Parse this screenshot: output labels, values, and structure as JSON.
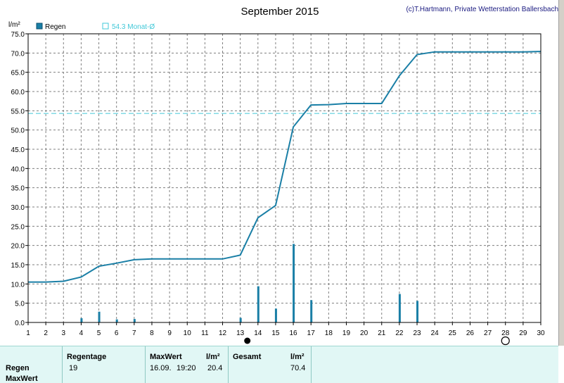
{
  "header": {
    "title": "September 2015",
    "copyright": "(c)T.Hartmann, Private Wetterstation Ballersbach"
  },
  "legend": {
    "rain_label": "Regen",
    "monthly_avg_label": "54.3 Monat-Ø"
  },
  "colors": {
    "line": "#1a7fa6",
    "bars": "#1a7fa6",
    "avg_line": "#40c8d8",
    "grid": "#7f7f7f",
    "panel_bg": "#e1f7f5"
  },
  "moon_phases": {
    "new_moon_day": 13.4,
    "full_moon_day": 28.0
  },
  "chart_data": {
    "type": "line",
    "title": "September 2015",
    "ylabel": "l/m²",
    "xlim": [
      1,
      30
    ],
    "ylim": [
      0,
      75
    ],
    "x_ticks": [
      "1",
      "2",
      "3",
      "4",
      "5",
      "6",
      "7",
      "8",
      "9",
      "10",
      "11",
      "12",
      "13",
      "14",
      "15",
      "16",
      "17",
      "18",
      "19",
      "20",
      "21",
      "22",
      "23",
      "24",
      "25",
      "26",
      "27",
      "28",
      "29",
      "30"
    ],
    "y_ticks": [
      "0.0",
      "5.0",
      "10.0",
      "15.0",
      "20.0",
      "25.0",
      "30.0",
      "35.0",
      "40.0",
      "45.0",
      "50.0",
      "55.0",
      "60.0",
      "65.0",
      "70.0",
      "75.0"
    ],
    "grid": true,
    "legend_position": "top-left",
    "series": [
      {
        "name": "Regen",
        "type": "bar",
        "points": [
          {
            "x": 4,
            "y": 1.1
          },
          {
            "x": 5,
            "y": 2.8
          },
          {
            "x": 6,
            "y": 0.8
          },
          {
            "x": 7,
            "y": 0.9
          },
          {
            "x": 13,
            "y": 1.2
          },
          {
            "x": 14,
            "y": 9.4
          },
          {
            "x": 15,
            "y": 3.6
          },
          {
            "x": 16,
            "y": 20.4
          },
          {
            "x": 17,
            "y": 5.8
          },
          {
            "x": 22,
            "y": 7.4
          },
          {
            "x": 23,
            "y": 5.6
          }
        ]
      },
      {
        "name": "Summe",
        "type": "line",
        "points": [
          {
            "x": 1,
            "y": 10.5
          },
          {
            "x": 2,
            "y": 10.5
          },
          {
            "x": 3,
            "y": 10.7
          },
          {
            "x": 4,
            "y": 11.8
          },
          {
            "x": 5,
            "y": 14.6
          },
          {
            "x": 6,
            "y": 15.4
          },
          {
            "x": 7,
            "y": 16.3
          },
          {
            "x": 8,
            "y": 16.5
          },
          {
            "x": 9,
            "y": 16.5
          },
          {
            "x": 10,
            "y": 16.5
          },
          {
            "x": 11,
            "y": 16.5
          },
          {
            "x": 12,
            "y": 16.5
          },
          {
            "x": 13,
            "y": 17.5
          },
          {
            "x": 14,
            "y": 27.2
          },
          {
            "x": 15,
            "y": 30.4
          },
          {
            "x": 16,
            "y": 50.8
          },
          {
            "x": 17,
            "y": 56.5
          },
          {
            "x": 18,
            "y": 56.6
          },
          {
            "x": 19,
            "y": 56.9
          },
          {
            "x": 20,
            "y": 56.9
          },
          {
            "x": 21,
            "y": 56.9
          },
          {
            "x": 22,
            "y": 64.1
          },
          {
            "x": 23,
            "y": 69.6
          },
          {
            "x": 24,
            "y": 70.3
          },
          {
            "x": 25,
            "y": 70.3
          },
          {
            "x": 26,
            "y": 70.3
          },
          {
            "x": 27,
            "y": 70.3
          },
          {
            "x": 28,
            "y": 70.3
          },
          {
            "x": 29,
            "y": 70.3
          },
          {
            "x": 30,
            "y": 70.4
          }
        ]
      },
      {
        "name": "54.3 Monat-Ø",
        "type": "hline",
        "value": 54.3
      }
    ]
  },
  "stats": {
    "row_labels": [
      "Regen",
      "MaxWert"
    ],
    "regentage_header": "Regentage",
    "regentage_value": "19",
    "maxwert_header": "MaxWert",
    "maxwert_unit": "l/m²",
    "maxwert_date": "16.09.",
    "maxwert_time": "19:20",
    "maxwert_value": "20.4",
    "gesamt_header": "Gesamt",
    "gesamt_unit": "l/m²",
    "gesamt_value": "70.4"
  }
}
